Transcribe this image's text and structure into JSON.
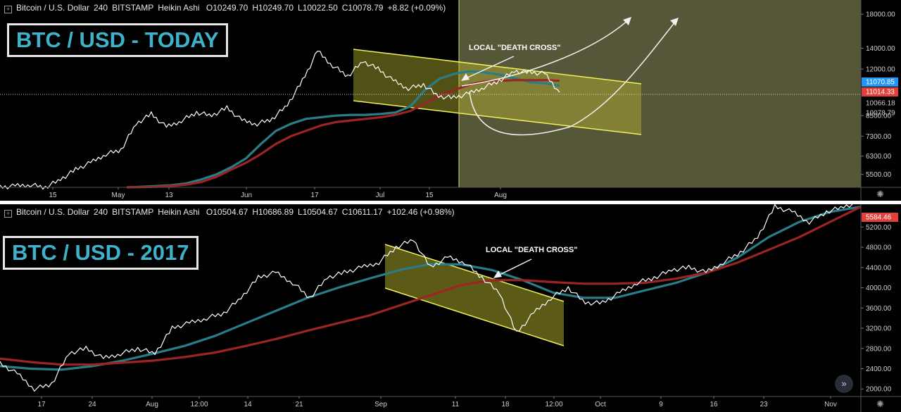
{
  "top": {
    "header": {
      "symbol": "Bitcoin / U.S. Dollar",
      "interval": "240",
      "exchange": "BITSTAMP",
      "style": "Heikin Ashi",
      "open": "O10249.70",
      "high": "H10249.70",
      "low": "L10022.50",
      "close": "C10078.79",
      "change": "+8.82 (+0.09%)"
    },
    "title": "BTC / USD - TODAY",
    "annotation": "LOCAL \"DEATH CROSS\""
  },
  "bottom": {
    "header": {
      "symbol": "Bitcoin / U.S. Dollar",
      "interval": "240",
      "exchange": "BITSTAMP",
      "style": "Heikin Ashi",
      "open": "O10504.67",
      "high": "H10686.89",
      "low": "L10504.67",
      "close": "C10611.17",
      "change": "+102.46 (+0.98%)"
    },
    "title": "BTC / USD - 2017",
    "annotation": "LOCAL \"DEATH CROSS\""
  },
  "colors": {
    "price": "#ffffff",
    "ma_fast": "#2a7d86",
    "ma_slow": "#9b2524",
    "channel_fill": "#9c9a25",
    "channel_line": "#f2f25a",
    "projection_area": "#5b5b3c",
    "label_blue": "#2196f3",
    "label_red": "#e0403a"
  },
  "chart_data": [
    {
      "type": "line",
      "scale": "log",
      "x_ticks": [
        "15",
        "May",
        "13",
        "Jun",
        "17",
        "Jul",
        "15",
        "Aug"
      ],
      "y_ticks": [
        18000,
        14000,
        12000,
        8500,
        7300,
        6300,
        5500
      ],
      "price_labels": [
        {
          "text": "11070.85",
          "kind": "blue"
        },
        {
          "text": "11014.33",
          "kind": "red"
        },
        {
          "text": "10066.18",
          "kind": "plain"
        },
        {
          "text": "10078.79",
          "kind": "plain"
        }
      ],
      "series": [
        {
          "values": [
            5000,
            5050,
            5100,
            5000,
            5300,
            5700,
            6000,
            6400,
            6600,
            8000,
            8600,
            7800,
            8200,
            8700,
            8500,
            9000,
            8200,
            8000,
            8300,
            9200,
            11000,
            13700,
            12300,
            11400,
            12700,
            12000,
            11000,
            10400,
            10700,
            9800,
            9700,
            10000,
            10500,
            11000,
            11800,
            11700,
            11600,
            10100
          ]
        },
        {
          "values": [
            5000,
            5020,
            5050,
            5080,
            5150,
            5300,
            5500,
            5800,
            6200,
            6900,
            7600,
            8000,
            8300,
            8400,
            8500,
            8550,
            8550,
            8600,
            8700,
            9100,
            10300,
            11200,
            11600,
            11800,
            11700,
            11500,
            11200,
            10900,
            10800,
            10600
          ]
        },
        {
          "values": [
            5000,
            5010,
            5020,
            5050,
            5100,
            5200,
            5400,
            5700,
            6000,
            6400,
            6900,
            7300,
            7600,
            7900,
            8100,
            8200,
            8300,
            8400,
            8550,
            8800,
            9300,
            9900,
            10300,
            10700,
            10950,
            11000,
            11050,
            11050,
            11050,
            11000
          ]
        }
      ]
    },
    {
      "type": "line",
      "scale": "linear",
      "x_ticks": [
        "17",
        "24",
        "Aug",
        "12:00",
        "14",
        "21",
        "Sep",
        "11",
        "18",
        "12:00",
        "Oct",
        "9",
        "16",
        "23",
        "Nov"
      ],
      "y_ticks": [
        5200,
        4800,
        4400,
        4000,
        3600,
        3200,
        2800,
        2400,
        2000
      ],
      "ylim": [
        1850,
        5650
      ],
      "price_labels": [
        {
          "text": "5584.46",
          "kind": "red"
        }
      ],
      "series": [
        {
          "values": [
            2500,
            2300,
            2000,
            2100,
            2700,
            2800,
            2600,
            2700,
            2800,
            2700,
            3200,
            3300,
            3400,
            3500,
            3800,
            4200,
            4300,
            4100,
            3800,
            4200,
            4300,
            4400,
            4500,
            4800,
            4950,
            4400,
            4600,
            4500,
            4200,
            3900,
            3100,
            3500,
            3800,
            4000,
            3700,
            3700,
            3900,
            4100,
            4200,
            4350,
            4400,
            4300,
            4500,
            4700,
            5000,
            5600,
            5500,
            5300,
            5500,
            5600,
            5700
          ]
        },
        {
          "values": [
            2450,
            2400,
            2380,
            2450,
            2560,
            2700,
            2850,
            3050,
            3300,
            3550,
            3800,
            4000,
            4180,
            4350,
            4470,
            4460,
            4350,
            4150,
            3900,
            3800,
            3800,
            3950,
            4100,
            4300,
            4600,
            5000,
            5300,
            5500,
            5600
          ]
        },
        {
          "values": [
            2600,
            2530,
            2480,
            2480,
            2520,
            2560,
            2630,
            2720,
            2850,
            2990,
            3150,
            3300,
            3450,
            3650,
            3850,
            4050,
            4150,
            4150,
            4110,
            4080,
            4080,
            4100,
            4180,
            4300,
            4500,
            4750,
            5000,
            5300,
            5600
          ]
        }
      ]
    }
  ]
}
